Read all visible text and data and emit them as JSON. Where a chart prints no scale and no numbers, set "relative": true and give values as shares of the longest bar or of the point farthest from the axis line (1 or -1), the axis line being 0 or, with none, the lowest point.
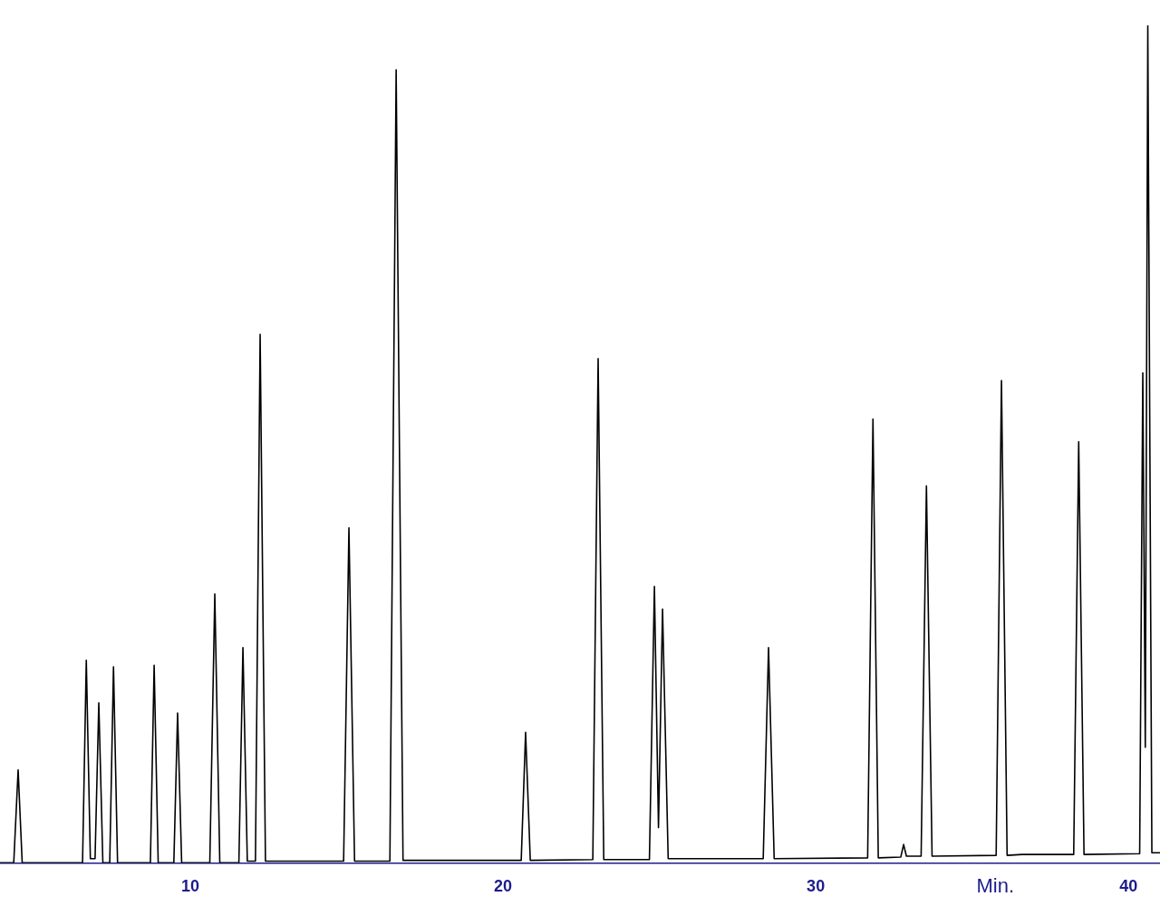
{
  "chart_data": {
    "type": "line",
    "relative": true,
    "xlabel": "Min.",
    "xlim": [
      3.91,
      41.01
    ],
    "xticks": [
      10,
      20,
      30,
      40
    ],
    "series": [
      {
        "color": "#000000",
        "x": [
          3.91,
          4.35,
          4.49,
          4.62,
          6.55,
          6.67,
          6.8,
          6.95,
          7.07,
          7.2,
          7.42,
          7.54,
          7.67,
          8.72,
          8.84,
          8.97,
          9.47,
          9.59,
          9.72,
          10.62,
          10.78,
          10.94,
          11.55,
          11.68,
          11.82,
          12.08,
          12.23,
          12.4,
          14.9,
          15.07,
          15.25,
          16.38,
          16.58,
          16.8,
          20.58,
          20.72,
          20.87,
          22.87,
          23.04,
          23.22,
          24.68,
          24.84,
          24.97,
          25.1,
          25.28,
          28.32,
          28.49,
          28.67,
          31.66,
          31.83,
          32.0,
          32.72,
          32.81,
          32.9,
          33.37,
          33.54,
          33.72,
          35.77,
          35.94,
          36.12,
          36.6,
          38.25,
          38.41,
          38.58,
          40.36,
          40.46,
          40.54,
          40.62,
          40.75,
          41.01
        ],
        "values": [
          0,
          0,
          0.111,
          0,
          0,
          0.242,
          0.005,
          0.005,
          0.191,
          0,
          0,
          0.234,
          0,
          0,
          0.236,
          0,
          0,
          0.179,
          0,
          0,
          0.321,
          0,
          0,
          0.257,
          0.002,
          0.002,
          0.631,
          0.002,
          0.002,
          0.4,
          0.002,
          0.002,
          0.947,
          0.003,
          0.003,
          0.156,
          0.003,
          0.004,
          0.602,
          0.004,
          0.004,
          0.33,
          0.042,
          0.303,
          0.005,
          0.005,
          0.257,
          0.005,
          0.006,
          0.53,
          0.006,
          0.007,
          0.022,
          0.008,
          0.008,
          0.45,
          0.008,
          0.009,
          0.576,
          0.009,
          0.01,
          0.01,
          0.503,
          0.01,
          0.011,
          0.585,
          0.138,
          1.0,
          0.012,
          0.012
        ]
      }
    ]
  }
}
